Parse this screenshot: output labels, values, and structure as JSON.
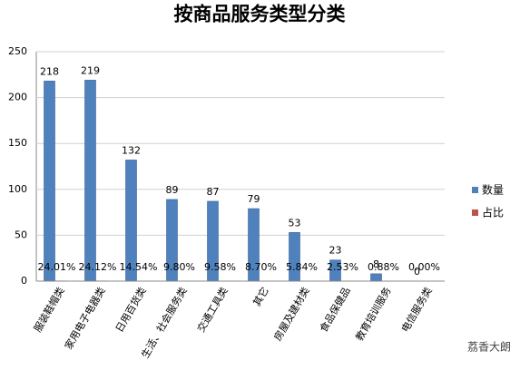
{
  "chart_data": {
    "type": "bar",
    "title": "按商品服务类型分类",
    "categories": [
      "服装鞋帽类",
      "家用电子电器类",
      "日用百货类",
      "生活、社会服务类",
      "交通工具类",
      "其它",
      "房屋及建材类",
      "食品保健品",
      "教育培训服务",
      "电信服务类"
    ],
    "series": [
      {
        "name": "数量",
        "color": "#4f81bd",
        "values": [
          218,
          219,
          132,
          89,
          87,
          79,
          53,
          23,
          8,
          0
        ]
      },
      {
        "name": "占比",
        "color": "#c0504d",
        "values": [
          0.2401,
          0.2412,
          0.1454,
          0.098,
          0.0958,
          0.087,
          0.0584,
          0.0253,
          0.0088,
          0
        ],
        "value_labels": [
          "24.01%",
          "24.12%",
          "14.54%",
          "9.80%",
          "9.58%",
          "8.70%",
          "5.84%",
          "2.53%",
          "0.88%",
          "0.00%"
        ]
      }
    ],
    "ylim": [
      0,
      250
    ],
    "yticks": [
      0,
      50,
      100,
      150,
      200,
      250
    ],
    "grid": true,
    "legend": "right",
    "watermark": "荔香大朗"
  }
}
